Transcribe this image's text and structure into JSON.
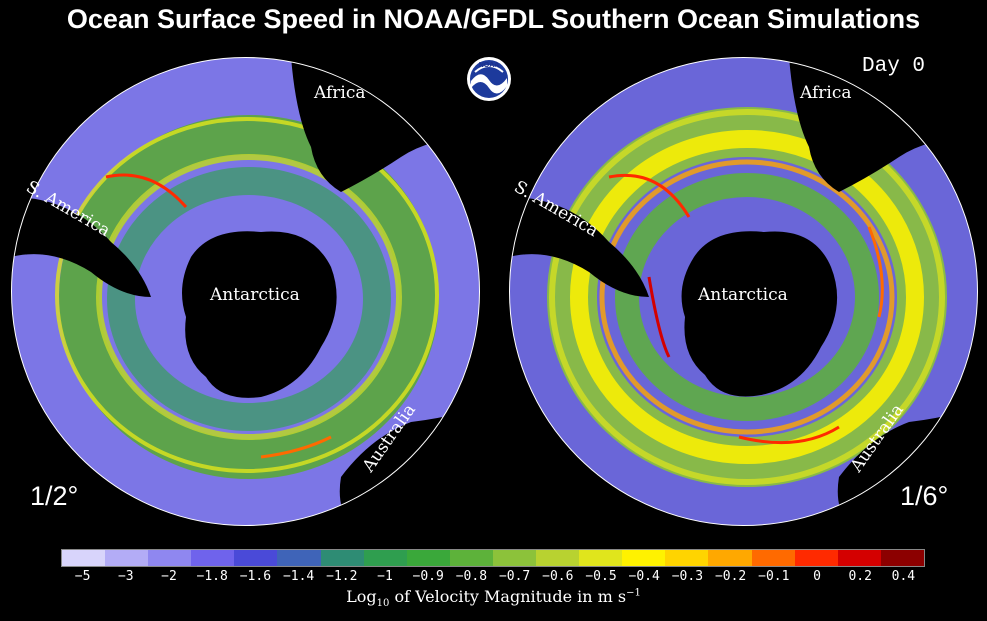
{
  "title": "Ocean Surface Speed in NOAA/GFDL Southern Ocean Simulations",
  "logo_text": "NOAA",
  "day_label": "Day 0",
  "panels": [
    {
      "resolution": "1/2°",
      "labels": {
        "africa": "Africa",
        "s_america": "S. America",
        "antarctica": "Antarctica",
        "australia": "Australia"
      }
    },
    {
      "resolution": "1/6°",
      "labels": {
        "africa": "Africa",
        "s_america": "S. America",
        "antarctica": "Antarctica",
        "australia": "Australia"
      }
    }
  ],
  "colorbar": {
    "colors": [
      "#d8d4fb",
      "#b3acf6",
      "#8f87f0",
      "#6f63ec",
      "#4a4ad8",
      "#3f64b8",
      "#2e8c74",
      "#2f9e4f",
      "#3aa83a",
      "#5db23a",
      "#8cc23a",
      "#b8d230",
      "#e0e51c",
      "#fff200",
      "#ffd400",
      "#ffa800",
      "#ff6a00",
      "#ff2a00",
      "#d40000",
      "#8c0000"
    ],
    "tick_labels": [
      "−5",
      "−3",
      "−2",
      "−1.8",
      "−1.6",
      "−1.4",
      "−1.2",
      "−1",
      "−0.9",
      "−0.8",
      "−0.7",
      "−0.6",
      "−0.5",
      "−0.4",
      "−0.3",
      "−0.2",
      "−0.1",
      "0",
      "0.2",
      "0.4"
    ],
    "label_prefix": "Log",
    "label_sub": "10",
    "label_mid": " of Velocity Magnitude in m s",
    "label_sup": "−1"
  }
}
